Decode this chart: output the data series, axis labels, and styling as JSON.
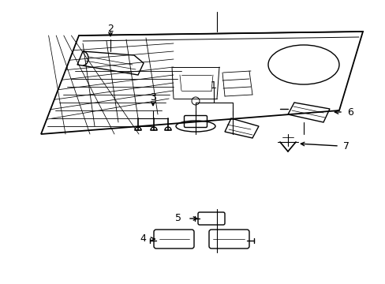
{
  "background_color": "#ffffff",
  "line_color": "#000000",
  "lw": 1.0,
  "fig_width": 4.89,
  "fig_height": 3.6,
  "dpi": 100
}
